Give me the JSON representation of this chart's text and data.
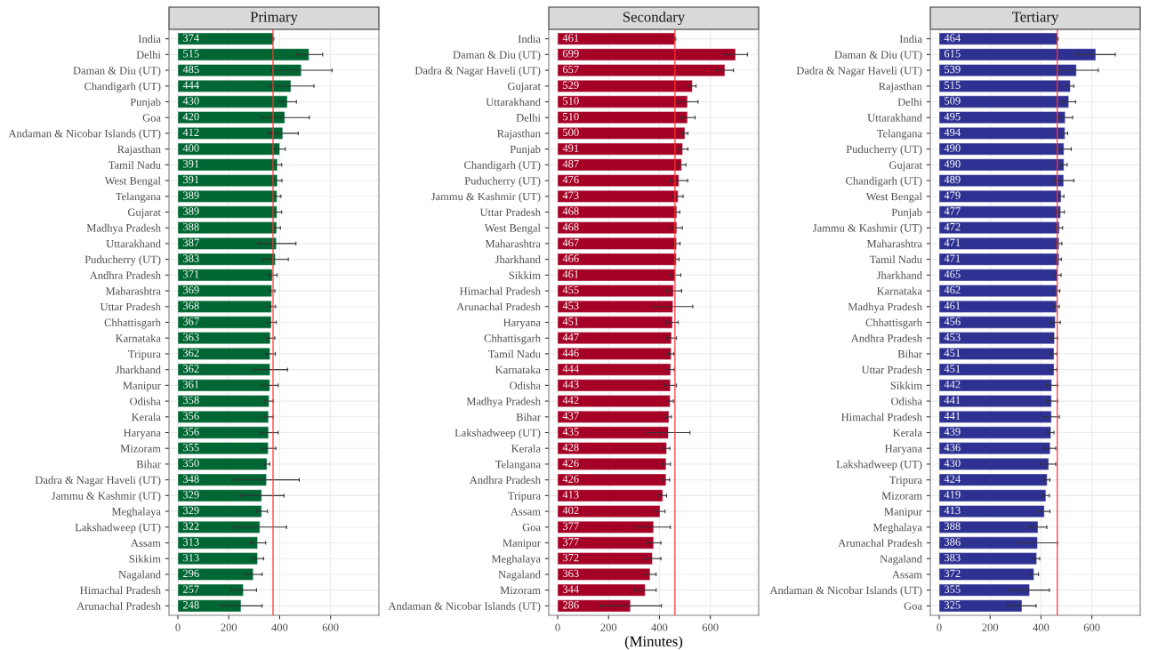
{
  "chart_data": [
    {
      "type": "bar",
      "orientation": "horizontal",
      "title": "Primary",
      "color": "#006633",
      "data_labels": true,
      "grid": true,
      "xlim": [
        -35,
        790
      ],
      "xticks": [
        0,
        200,
        400,
        600
      ],
      "categories": [
        "India",
        "Delhi",
        "Daman & Diu (UT)",
        "Chandigarh (UT)",
        "Punjab",
        "Goa",
        "Andaman & Nicobar Islands (UT)",
        "Rajasthan",
        "Tamil Nadu",
        "West Bengal",
        "Telangana",
        "Gujarat",
        "Madhya Pradesh",
        "Uttarakhand",
        "Puducherry (UT)",
        "Andhra Pradesh",
        "Maharashtra",
        "Uttar Pradesh",
        "Chhattisgarh",
        "Karnataka",
        "Tripura",
        "Jharkhand",
        "Manipur",
        "Odisha",
        "Kerala",
        "Haryana",
        "Mizoram",
        "Bihar",
        "Dadra & Nagar Haveli (UT)",
        "Jammu & Kashmir (UT)",
        "Meghalaya",
        "Lakshadweep (UT)",
        "Assam",
        "Sikkim",
        "Nagaland",
        "Himachal Pradesh",
        "Arunachal Pradesh"
      ],
      "values": [
        374,
        515,
        485,
        444,
        430,
        420,
        412,
        400,
        391,
        391,
        389,
        389,
        388,
        387,
        383,
        371,
        369,
        368,
        367,
        363,
        362,
        362,
        361,
        358,
        356,
        356,
        355,
        350,
        348,
        329,
        329,
        322,
        313,
        313,
        296,
        257,
        248
      ],
      "errors": [
        3,
        [
          466,
          569
        ],
        [
          369,
          606
        ],
        [
          358,
          535
        ],
        [
          398,
          466
        ],
        [
          328,
          517
        ],
        [
          357,
          473
        ],
        [
          383,
          422
        ],
        [
          377,
          408
        ],
        [
          377,
          409
        ],
        [
          377,
          405
        ],
        [
          377,
          408
        ],
        [
          377,
          403
        ],
        [
          315,
          464
        ],
        [
          335,
          434
        ],
        [
          357,
          390
        ],
        [
          361,
          381
        ],
        [
          358,
          384
        ],
        [
          350,
          387
        ],
        [
          349,
          381
        ],
        [
          345,
          383
        ],
        [
          297,
          431
        ],
        [
          330,
          394
        ],
        [
          342,
          375
        ],
        [
          339,
          375
        ],
        [
          322,
          394
        ],
        [
          329,
          385
        ],
        [
          342,
          361
        ],
        [
          223,
          477
        ],
        [
          246,
          417
        ],
        [
          309,
          352
        ],
        [
          221,
          427
        ],
        [
          285,
          345
        ],
        [
          294,
          337
        ],
        [
          266,
          331
        ],
        [
          211,
          309
        ],
        [
          169,
          331
        ]
      ],
      "ref_lines": [
        {
          "axis": "x",
          "value": 374,
          "color": "#ff3333"
        }
      ]
    },
    {
      "type": "bar",
      "orientation": "horizontal",
      "title": "Secondary",
      "xlabel": "(Minutes)",
      "color": "#a50026",
      "data_labels": true,
      "grid": true,
      "xlim": [
        -35,
        790
      ],
      "xticks": [
        0,
        200,
        400,
        600
      ],
      "categories": [
        "India",
        "Daman & Diu (UT)",
        "Dadra & Nagar Haveli (UT)",
        "Gujarat",
        "Uttarakhand",
        "Delhi",
        "Rajasthan",
        "Punjab",
        "Chandigarh (UT)",
        "Puducherry (UT)",
        "Jammu & Kashmir (UT)",
        "Uttar Pradesh",
        "West Bengal",
        "Maharashtra",
        "Jharkhand",
        "Sikkim",
        "Himachal Pradesh",
        "Arunachal Pradesh",
        "Haryana",
        "Chhattisgarh",
        "Tamil Nadu",
        "Karnataka",
        "Odisha",
        "Madhya Pradesh",
        "Bihar",
        "Lakshadweep (UT)",
        "Kerala",
        "Telangana",
        "Andhra Pradesh",
        "Tripura",
        "Assam",
        "Goa",
        "Manipur",
        "Meghalaya",
        "Nagaland",
        "Mizoram",
        "Andaman & Nicobar Islands (UT)"
      ],
      "values": [
        461,
        699,
        657,
        529,
        510,
        510,
        500,
        491,
        487,
        476,
        473,
        468,
        468,
        467,
        466,
        461,
        455,
        453,
        451,
        447,
        446,
        444,
        443,
        442,
        437,
        435,
        428,
        426,
        426,
        413,
        402,
        377,
        377,
        372,
        363,
        344,
        286
      ],
      "errors": [
        3,
        [
          653,
          746
        ],
        [
          626,
          691
        ],
        [
          517,
          544
        ],
        [
          469,
          552
        ],
        [
          481,
          540
        ],
        [
          491,
          512
        ],
        [
          475,
          512
        ],
        [
          472,
          504
        ],
        [
          443,
          511
        ],
        [
          451,
          493
        ],
        [
          460,
          480
        ],
        [
          447,
          490
        ],
        [
          455,
          481
        ],
        [
          455,
          477
        ],
        [
          441,
          484
        ],
        [
          426,
          487
        ],
        [
          375,
          531
        ],
        [
          429,
          474
        ],
        [
          429,
          467
        ],
        [
          435,
          457
        ],
        [
          431,
          458
        ],
        [
          419,
          467
        ],
        [
          432,
          455
        ],
        [
          427,
          447
        ],
        [
          351,
          520
        ],
        [
          414,
          441
        ],
        [
          409,
          443
        ],
        [
          413,
          440
        ],
        [
          398,
          428
        ],
        [
          384,
          422
        ],
        [
          312,
          443
        ],
        [
          349,
          406
        ],
        [
          337,
          406
        ],
        [
          338,
          387
        ],
        [
          301,
          387
        ],
        [
          166,
          408
        ]
      ],
      "ref_lines": [
        {
          "axis": "x",
          "value": 461,
          "color": "#ff3333"
        }
      ]
    },
    {
      "type": "bar",
      "orientation": "horizontal",
      "title": "Tertiary",
      "color": "#2e3192",
      "data_labels": true,
      "grid": true,
      "xlim": [
        -35,
        790
      ],
      "xticks": [
        0,
        200,
        400,
        600
      ],
      "categories": [
        "India",
        "Daman & Diu (UT)",
        "Dadra & Nagar Haveli (UT)",
        "Rajasthan",
        "Delhi",
        "Uttarakhand",
        "Telangana",
        "Puducherry (UT)",
        "Gujarat",
        "Chandigarh (UT)",
        "West Bengal",
        "Punjab",
        "Jammu & Kashmir (UT)",
        "Maharashtra",
        "Tamil Nadu",
        "Jharkhand",
        "Karnataka",
        "Madhya Pradesh",
        "Chhattisgarh",
        "Andhra Pradesh",
        "Bihar",
        "Uttar Pradesh",
        "Sikkim",
        "Odisha",
        "Himachal Pradesh",
        "Kerala",
        "Haryana",
        "Lakshadweep (UT)",
        "Tripura",
        "Mizoram",
        "Manipur",
        "Meghalaya",
        "Arunachal Pradesh",
        "Nagaland",
        "Assam",
        "Andaman & Nicobar Islands (UT)",
        "Goa"
      ],
      "values": [
        464,
        615,
        539,
        515,
        509,
        495,
        494,
        490,
        490,
        489,
        479,
        477,
        472,
        471,
        471,
        465,
        462,
        461,
        456,
        453,
        451,
        451,
        442,
        441,
        441,
        439,
        436,
        430,
        424,
        419,
        413,
        388,
        386,
        383,
        372,
        355,
        325
      ],
      "errors": [
        3,
        [
          539,
          692
        ],
        [
          456,
          625
        ],
        [
          503,
          529
        ],
        [
          483,
          536
        ],
        [
          466,
          524
        ],
        [
          482,
          505
        ],
        [
          462,
          519
        ],
        [
          476,
          503
        ],
        [
          450,
          529
        ],
        [
          466,
          490
        ],
        [
          460,
          492
        ],
        [
          459,
          485
        ],
        [
          460,
          482
        ],
        [
          459,
          480
        ],
        [
          449,
          479
        ],
        [
          449,
          474
        ],
        [
          451,
          472
        ],
        [
          436,
          476
        ],
        [
          437,
          465
        ],
        [
          440,
          462
        ],
        [
          440,
          462
        ],
        [
          422,
          465
        ],
        [
          422,
          465
        ],
        [
          410,
          472
        ],
        [
          428,
          451
        ],
        [
          415,
          458
        ],
        [
          400,
          458
        ],
        [
          413,
          435
        ],
        [
          406,
          433
        ],
        [
          391,
          435
        ],
        [
          353,
          423
        ],
        [
          308,
          465
        ],
        [
          369,
          395
        ],
        [
          354,
          390
        ],
        [
          277,
          433
        ],
        [
          268,
          381
        ]
      ],
      "ref_lines": [
        {
          "axis": "x",
          "value": 464,
          "color": "#ff3333"
        }
      ]
    }
  ]
}
